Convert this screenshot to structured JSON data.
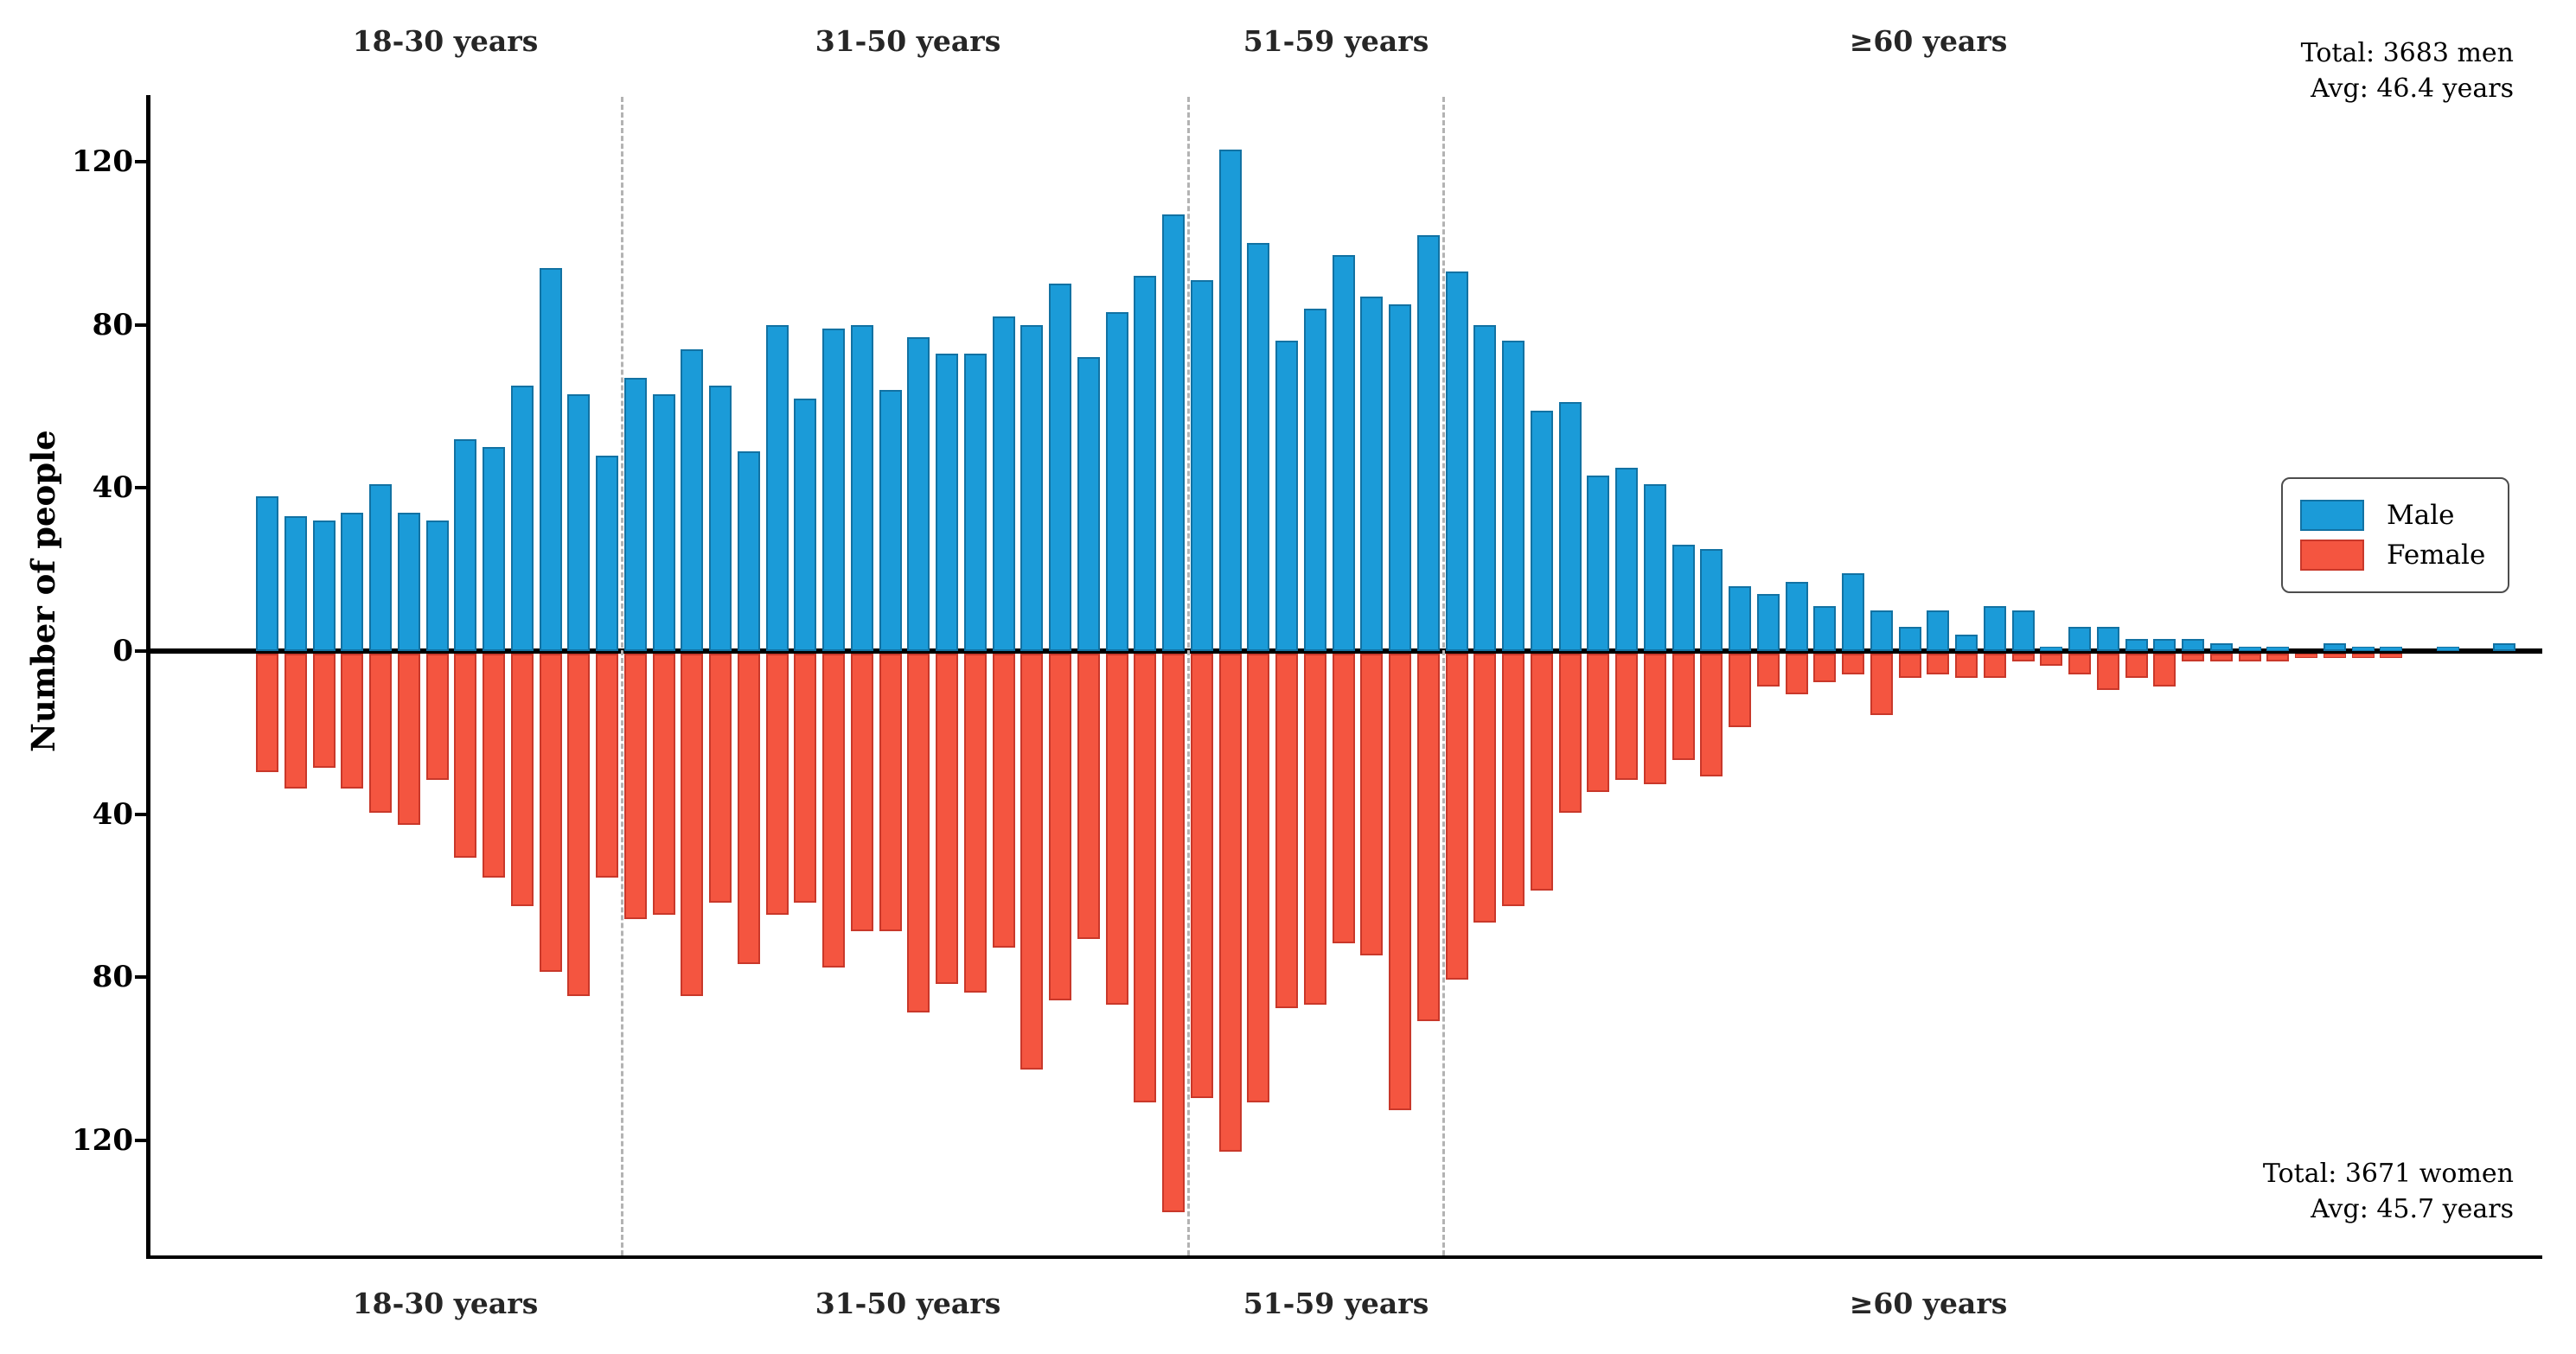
{
  "chart_data": {
    "type": "bar",
    "variant": "mirrored-population-pyramid",
    "title": "",
    "ylabel": "Number of people",
    "xlabel": "",
    "grid": false,
    "yticks": [
      0,
      40,
      80,
      120
    ],
    "ylim": [
      -140,
      140
    ],
    "ages": [
      18,
      19,
      20,
      21,
      22,
      23,
      24,
      25,
      26,
      27,
      28,
      29,
      30,
      31,
      32,
      33,
      34,
      35,
      36,
      37,
      38,
      39,
      40,
      41,
      42,
      43,
      44,
      45,
      46,
      47,
      48,
      49,
      50,
      51,
      52,
      53,
      54,
      55,
      56,
      57,
      58,
      59,
      60,
      61,
      62,
      63,
      64,
      65,
      66,
      67,
      68,
      69,
      70,
      71,
      72,
      73,
      74,
      75,
      76,
      77,
      78,
      79,
      80,
      81,
      82,
      83,
      84,
      85,
      86,
      87,
      88,
      89,
      90,
      91,
      92,
      93,
      94,
      95,
      96,
      97
    ],
    "series": [
      {
        "name": "Male",
        "direction": "up",
        "color": "#1b9bd8",
        "edge_color": "#1272a3",
        "values": [
          38,
          33,
          32,
          34,
          41,
          34,
          32,
          52,
          50,
          65,
          94,
          63,
          48,
          67,
          63,
          74,
          65,
          49,
          80,
          62,
          79,
          80,
          64,
          77,
          73,
          73,
          82,
          80,
          90,
          72,
          83,
          92,
          107,
          91,
          123,
          100,
          76,
          84,
          97,
          87,
          85,
          102,
          93,
          80,
          76,
          59,
          61,
          43,
          45,
          41,
          26,
          25,
          16,
          14,
          17,
          11,
          19,
          10,
          6,
          10,
          4,
          11,
          10,
          1,
          6,
          6,
          3,
          3,
          3,
          2,
          1,
          1,
          0,
          2,
          1,
          1,
          0,
          1,
          0,
          2
        ]
      },
      {
        "name": "Female",
        "direction": "down",
        "color": "#f45540",
        "edge_color": "#c9382a",
        "values": [
          29,
          33,
          28,
          33,
          39,
          42,
          31,
          50,
          55,
          62,
          78,
          84,
          55,
          65,
          64,
          84,
          61,
          76,
          64,
          61,
          77,
          68,
          68,
          88,
          81,
          83,
          72,
          102,
          85,
          70,
          86,
          110,
          137,
          109,
          122,
          110,
          87,
          86,
          71,
          74,
          112,
          90,
          80,
          66,
          62,
          58,
          39,
          34,
          31,
          32,
          26,
          30,
          18,
          8,
          10,
          7,
          5,
          15,
          6,
          5,
          6,
          6,
          2,
          3,
          5,
          9,
          6,
          8,
          2,
          2,
          2,
          2,
          1,
          1,
          1,
          1,
          0,
          0,
          0,
          0
        ]
      }
    ],
    "age_groups": [
      {
        "label": "18-30 years",
        "from_age": 18,
        "to_age": 30
      },
      {
        "label": "31-50 years",
        "from_age": 31,
        "to_age": 50
      },
      {
        "label": "51-59 years",
        "from_age": 51,
        "to_age": 59
      },
      {
        "label": "≥60 years",
        "from_age": 60,
        "to_age": 97
      }
    ],
    "separators": "dashed gray vertical lines between age groups",
    "annotations": {
      "male_total": "Total: 3683 men",
      "male_avg": "Avg: 46.4 years",
      "female_total": "Total: 3671 women",
      "female_avg": "Avg: 45.7 years"
    },
    "legend": {
      "position": "middle-right",
      "entries": [
        "Male",
        "Female"
      ]
    }
  }
}
